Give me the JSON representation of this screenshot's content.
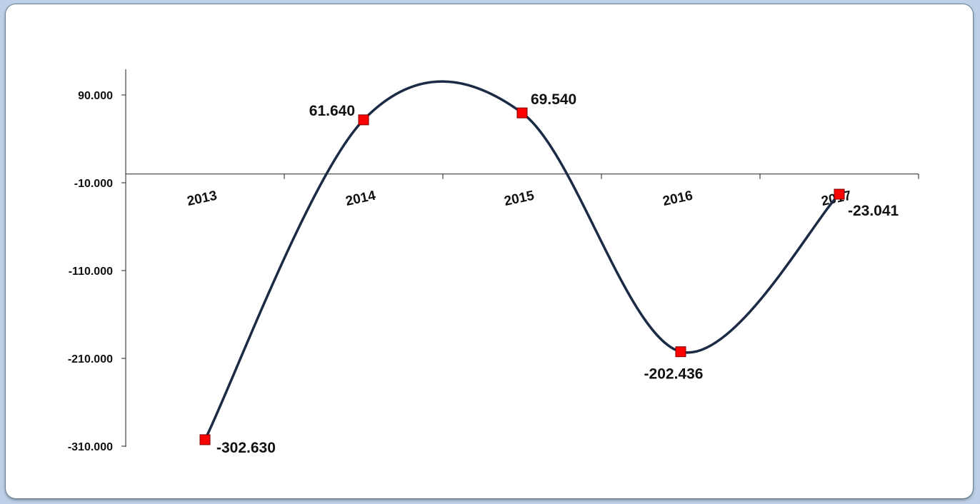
{
  "chart_data": {
    "type": "line",
    "title": "",
    "xlabel": "",
    "ylabel": "",
    "categories": [
      "2013",
      "2014",
      "2015",
      "2016",
      "2017"
    ],
    "series": [
      {
        "values": [
          -302.63,
          61.64,
          69.54,
          -202.436,
          -23.041
        ],
        "data_labels": [
          "-302.630",
          "61.640",
          "69.540",
          "-202.436",
          "-23.041"
        ]
      }
    ],
    "yticks": [
      90,
      -10,
      -110,
      -210,
      -310
    ],
    "ytick_labels": [
      "90.000",
      "-10.000",
      "-110.000",
      "-210.000",
      "-310.000"
    ],
    "ylim": [
      -310,
      119
    ],
    "x_axis_crosses_at": 0,
    "smoothed_line": true,
    "grid": false,
    "legend": "none",
    "colors": {
      "line": "#1b2a45",
      "marker_fill": "#ff0000",
      "marker_border": "#7a0000",
      "axis": "#222222",
      "background": "#ffffff",
      "frame": "#bdd0e7"
    }
  }
}
